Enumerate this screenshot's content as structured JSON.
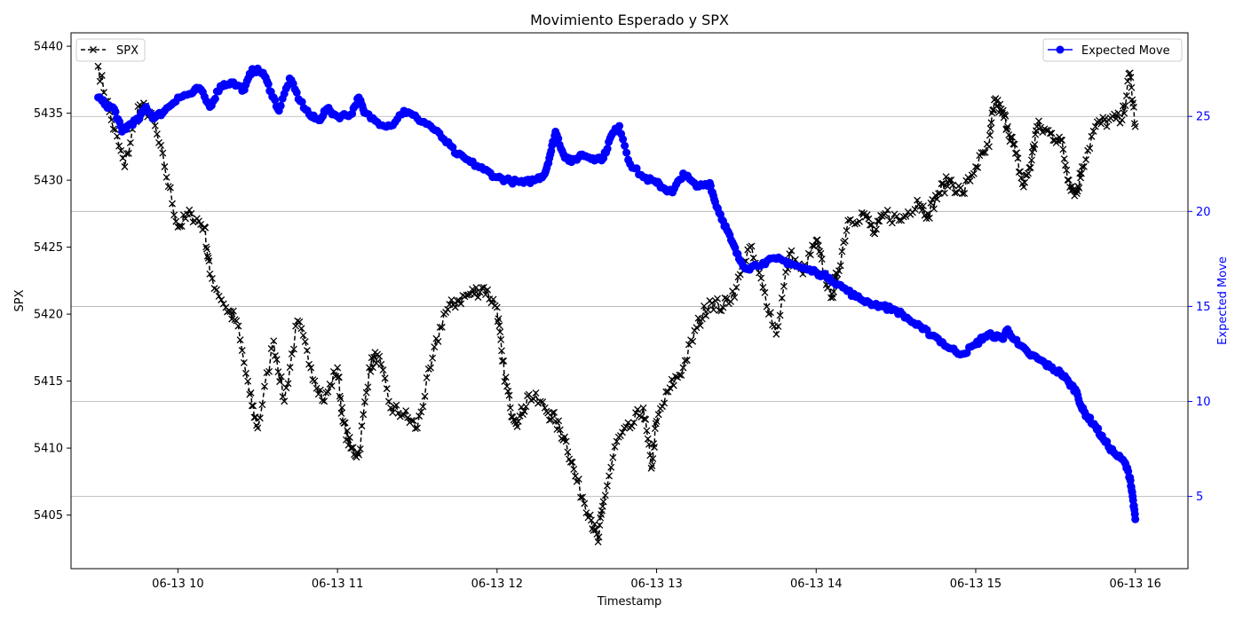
{
  "chart_data": {
    "type": "line",
    "title": "Movimiento Esperado y SPX",
    "xlabel": "Timestamp",
    "x_ticks": [
      "06-13 10",
      "06-13 11",
      "06-13 12",
      "06-13 13",
      "06-13 14",
      "06-13 15",
      "06-13 16"
    ],
    "x_range": [
      "06-13 09:30",
      "06-13 16:00"
    ],
    "x_domain_hours": [
      9.33,
      16.33
    ],
    "left_axis": {
      "label": "SPX",
      "ylim": [
        5401,
        5441
      ],
      "ticks": [
        5405,
        5410,
        5415,
        5420,
        5425,
        5430,
        5435,
        5440
      ]
    },
    "right_axis": {
      "label": "Expected Move",
      "label_color": "#0000ff",
      "ylim": [
        1.2,
        29.4
      ],
      "ticks": [
        5,
        10,
        15,
        20,
        25
      ]
    },
    "grid": "horizontal, right axis",
    "legends": {
      "left": {
        "position": "top-left",
        "entry": "SPX"
      },
      "right": {
        "position": "top-right",
        "entry": "Expected Move"
      }
    },
    "series": [
      {
        "name": "SPX",
        "axis": "left",
        "color": "#000000",
        "line_style": "dashed",
        "marker": "x",
        "points": [
          [
            "06-13 09:30",
            5438.5
          ],
          [
            "06-13 09:35",
            5434.5
          ],
          [
            "06-13 09:40",
            5431.0
          ],
          [
            "06-13 09:45",
            5435.5
          ],
          [
            "06-13 09:50",
            5435.0
          ],
          [
            "06-13 09:55",
            5431.0
          ],
          [
            "06-13 10:00",
            5426.5
          ],
          [
            "06-13 10:05",
            5427.5
          ],
          [
            "06-13 10:10",
            5426.5
          ],
          [
            "06-13 10:12",
            5423.0
          ],
          [
            "06-13 10:18",
            5420.5
          ],
          [
            "06-13 10:22",
            5419.5
          ],
          [
            "06-13 10:27",
            5414.0
          ],
          [
            "06-13 10:30",
            5411.5
          ],
          [
            "06-13 10:36",
            5418.0
          ],
          [
            "06-13 10:40",
            5413.5
          ],
          [
            "06-13 10:45",
            5419.5
          ],
          [
            "06-13 10:50",
            5416.0
          ],
          [
            "06-13 10:55",
            5413.5
          ],
          [
            "06-13 11:00",
            5416.0
          ],
          [
            "06-13 11:02",
            5412.0
          ],
          [
            "06-13 11:05",
            5410.0
          ],
          [
            "06-13 11:08",
            5409.5
          ],
          [
            "06-13 11:12",
            5416.0
          ],
          [
            "06-13 11:15",
            5417.0
          ],
          [
            "06-13 11:20",
            5413.0
          ],
          [
            "06-13 11:25",
            5412.5
          ],
          [
            "06-13 11:30",
            5411.5
          ],
          [
            "06-13 11:35",
            5416.0
          ],
          [
            "06-13 11:40",
            5420.0
          ],
          [
            "06-13 11:45",
            5421.0
          ],
          [
            "06-13 11:50",
            5421.5
          ],
          [
            "06-13 11:55",
            5422.0
          ],
          [
            "06-13 12:00",
            5420.5
          ],
          [
            "06-13 12:02",
            5416.5
          ],
          [
            "06-13 12:05",
            5413.0
          ],
          [
            "06-13 12:08",
            5412.0
          ],
          [
            "06-13 12:12",
            5414.0
          ],
          [
            "06-13 12:18",
            5413.0
          ],
          [
            "06-13 12:22",
            5412.0
          ],
          [
            "06-13 12:26",
            5410.5
          ],
          [
            "06-13 12:30",
            5407.5
          ],
          [
            "06-13 12:35",
            5405.0
          ],
          [
            "06-13 12:38",
            5403.0
          ],
          [
            "06-13 12:40",
            5406.0
          ],
          [
            "06-13 12:45",
            5410.5
          ],
          [
            "06-13 12:50",
            5411.5
          ],
          [
            "06-13 12:55",
            5413.0
          ],
          [
            "06-13 12:58",
            5408.5
          ],
          [
            "06-13 13:00",
            5412.0
          ],
          [
            "06-13 13:05",
            5414.5
          ],
          [
            "06-13 13:10",
            5416.0
          ],
          [
            "06-13 13:15",
            5419.0
          ],
          [
            "06-13 13:20",
            5421.0
          ],
          [
            "06-13 13:25",
            5420.5
          ],
          [
            "06-13 13:30",
            5422.0
          ],
          [
            "06-13 13:35",
            5425.0
          ],
          [
            "06-13 13:40",
            5422.0
          ],
          [
            "06-13 13:45",
            5418.5
          ],
          [
            "06-13 13:50",
            5424.5
          ],
          [
            "06-13 13:55",
            5423.0
          ],
          [
            "06-13 14:00",
            5425.5
          ],
          [
            "06-13 14:03",
            5423.0
          ],
          [
            "06-13 14:06",
            5421.5
          ],
          [
            "06-13 14:08",
            5423.0
          ],
          [
            "06-13 14:12",
            5427.0
          ],
          [
            "06-13 14:18",
            5427.5
          ],
          [
            "06-13 14:22",
            5426.0
          ],
          [
            "06-13 14:26",
            5427.5
          ],
          [
            "06-13 14:32",
            5427.0
          ],
          [
            "06-13 14:38",
            5428.5
          ],
          [
            "06-13 14:42",
            5427.5
          ],
          [
            "06-13 14:46",
            5429.0
          ],
          [
            "06-13 14:50",
            5430.0
          ],
          [
            "06-13 14:55",
            5429.0
          ],
          [
            "06-13 15:00",
            5431.0
          ],
          [
            "06-13 15:05",
            5432.5
          ],
          [
            "06-13 15:07",
            5436.0
          ],
          [
            "06-13 15:10",
            5435.0
          ],
          [
            "06-13 15:12",
            5434.0
          ],
          [
            "06-13 15:15",
            5432.0
          ],
          [
            "06-13 15:18",
            5429.5
          ],
          [
            "06-13 15:21",
            5431.5
          ],
          [
            "06-13 15:23",
            5434.0
          ],
          [
            "06-13 15:28",
            5433.5
          ],
          [
            "06-13 15:32",
            5433.0
          ],
          [
            "06-13 15:35",
            5430.0
          ],
          [
            "06-13 15:38",
            5429.0
          ],
          [
            "06-13 15:40",
            5431.0
          ],
          [
            "06-13 15:45",
            5434.0
          ],
          [
            "06-13 15:50",
            5434.5
          ],
          [
            "06-13 15:55",
            5434.5
          ],
          [
            "06-13 15:58",
            5438.0
          ],
          [
            "06-13 16:00",
            5434.0
          ]
        ]
      },
      {
        "name": "Expected Move",
        "axis": "right",
        "color": "#0000ff",
        "line_style": "solid",
        "marker": "o",
        "points": [
          [
            "06-13 09:30",
            26.0
          ],
          [
            "06-13 09:33",
            25.6
          ],
          [
            "06-13 09:36",
            25.4
          ],
          [
            "06-13 09:39",
            24.2
          ],
          [
            "06-13 09:42",
            24.6
          ],
          [
            "06-13 09:45",
            24.8
          ],
          [
            "06-13 09:48",
            25.5
          ],
          [
            "06-13 09:51",
            24.9
          ],
          [
            "06-13 09:55",
            25.3
          ],
          [
            "06-13 10:00",
            26.0
          ],
          [
            "06-13 10:05",
            26.2
          ],
          [
            "06-13 10:08",
            26.5
          ],
          [
            "06-13 10:12",
            25.5
          ],
          [
            "06-13 10:16",
            26.6
          ],
          [
            "06-13 10:20",
            26.8
          ],
          [
            "06-13 10:25",
            26.4
          ],
          [
            "06-13 10:28",
            27.5
          ],
          [
            "06-13 10:32",
            27.3
          ],
          [
            "06-13 10:35",
            26.3
          ],
          [
            "06-13 10:38",
            25.3
          ],
          [
            "06-13 10:42",
            27.0
          ],
          [
            "06-13 10:46",
            25.8
          ],
          [
            "06-13 10:50",
            25.0
          ],
          [
            "06-13 10:53",
            24.8
          ],
          [
            "06-13 10:56",
            25.4
          ],
          [
            "06-13 11:00",
            25.0
          ],
          [
            "06-13 11:05",
            25.1
          ],
          [
            "06-13 11:08",
            26.0
          ],
          [
            "06-13 11:10",
            25.2
          ],
          [
            "06-13 11:15",
            24.7
          ],
          [
            "06-13 11:20",
            24.5
          ],
          [
            "06-13 11:25",
            25.3
          ],
          [
            "06-13 11:30",
            24.9
          ],
          [
            "06-13 11:35",
            24.5
          ],
          [
            "06-13 11:40",
            23.8
          ],
          [
            "06-13 11:45",
            23.0
          ],
          [
            "06-13 11:50",
            22.6
          ],
          [
            "06-13 11:55",
            22.2
          ],
          [
            "06-13 12:00",
            21.8
          ],
          [
            "06-13 12:05",
            21.6
          ],
          [
            "06-13 12:10",
            21.5
          ],
          [
            "06-13 12:15",
            21.7
          ],
          [
            "06-13 12:18",
            22.0
          ],
          [
            "06-13 12:20",
            23.0
          ],
          [
            "06-13 12:22",
            24.2
          ],
          [
            "06-13 12:25",
            23.0
          ],
          [
            "06-13 12:28",
            22.6
          ],
          [
            "06-13 12:32",
            23.0
          ],
          [
            "06-13 12:36",
            22.8
          ],
          [
            "06-13 12:40",
            22.8
          ],
          [
            "06-13 12:43",
            24.0
          ],
          [
            "06-13 12:46",
            24.5
          ],
          [
            "06-13 12:50",
            22.5
          ],
          [
            "06-13 12:55",
            21.8
          ],
          [
            "06-13 13:00",
            21.5
          ],
          [
            "06-13 13:03",
            21.2
          ],
          [
            "06-13 13:06",
            21.0
          ],
          [
            "06-13 13:10",
            22.0
          ],
          [
            "06-13 13:15",
            21.3
          ],
          [
            "06-13 13:20",
            21.5
          ],
          [
            "06-13 13:22",
            20.5
          ],
          [
            "06-13 13:25",
            19.5
          ],
          [
            "06-13 13:28",
            18.5
          ],
          [
            "06-13 13:31",
            17.5
          ],
          [
            "06-13 13:34",
            17.0
          ],
          [
            "06-13 13:40",
            17.3
          ],
          [
            "06-13 13:45",
            17.5
          ],
          [
            "06-13 13:50",
            17.3
          ],
          [
            "06-13 13:55",
            17.0
          ],
          [
            "06-13 14:00",
            16.8
          ],
          [
            "06-13 14:05",
            16.5
          ],
          [
            "06-13 14:10",
            16.0
          ],
          [
            "06-13 14:15",
            15.5
          ],
          [
            "06-13 14:20",
            15.2
          ],
          [
            "06-13 14:25",
            15.0
          ],
          [
            "06-13 14:30",
            14.8
          ],
          [
            "06-13 14:35",
            14.3
          ],
          [
            "06-13 14:40",
            13.8
          ],
          [
            "06-13 14:45",
            13.4
          ],
          [
            "06-13 14:50",
            12.8
          ],
          [
            "06-13 14:55",
            12.5
          ],
          [
            "06-13 15:00",
            13.0
          ],
          [
            "06-13 15:03",
            13.4
          ],
          [
            "06-13 15:06",
            13.5
          ],
          [
            "06-13 15:10",
            13.3
          ],
          [
            "06-13 15:12",
            13.8
          ],
          [
            "06-13 15:16",
            13.0
          ],
          [
            "06-13 15:20",
            12.5
          ],
          [
            "06-13 15:24",
            12.2
          ],
          [
            "06-13 15:28",
            11.8
          ],
          [
            "06-13 15:32",
            11.5
          ],
          [
            "06-13 15:35",
            11.0
          ],
          [
            "06-13 15:38",
            10.5
          ],
          [
            "06-13 15:40",
            9.6
          ],
          [
            "06-13 15:42",
            9.2
          ],
          [
            "06-13 15:45",
            8.7
          ],
          [
            "06-13 15:48",
            8.0
          ],
          [
            "06-13 15:52",
            7.3
          ],
          [
            "06-13 15:56",
            6.8
          ],
          [
            "06-13 15:58",
            6.0
          ],
          [
            "06-13 15:59",
            5.0
          ],
          [
            "06-13 16:00",
            3.8
          ]
        ]
      }
    ]
  }
}
